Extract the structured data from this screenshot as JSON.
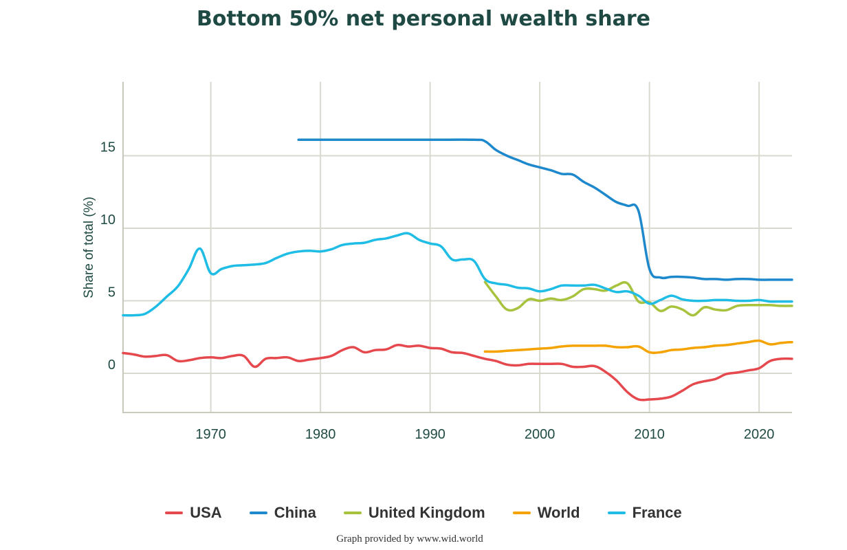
{
  "chart_data": {
    "type": "line",
    "title": "Bottom 50% net personal wealth share",
    "ylabel": "Share of total (%)",
    "xlabel": "",
    "xlim": [
      1962,
      2023
    ],
    "ylim": [
      -3,
      20
    ],
    "x_ticks": [
      "1970",
      "1980",
      "1990",
      "2000",
      "2010",
      "2020"
    ],
    "y_ticks": [
      "0",
      "5",
      "10",
      "15"
    ],
    "grid": true,
    "legend_position": "bottom",
    "credit": "Graph provided by www.wid.world",
    "series": [
      {
        "name": "USA",
        "color": "#e5484d",
        "points": [
          [
            1962,
            1.4
          ],
          [
            1963,
            1.3
          ],
          [
            1964,
            1.15
          ],
          [
            1965,
            1.2
          ],
          [
            1966,
            1.25
          ],
          [
            1967,
            0.85
          ],
          [
            1968,
            0.9
          ],
          [
            1969,
            1.05
          ],
          [
            1970,
            1.1
          ],
          [
            1971,
            1.05
          ],
          [
            1972,
            1.2
          ],
          [
            1973,
            1.2
          ],
          [
            1974,
            0.45
          ],
          [
            1975,
            1.0
          ],
          [
            1976,
            1.05
          ],
          [
            1977,
            1.1
          ],
          [
            1978,
            0.85
          ],
          [
            1979,
            0.95
          ],
          [
            1980,
            1.05
          ],
          [
            1981,
            1.2
          ],
          [
            1982,
            1.6
          ],
          [
            1983,
            1.8
          ],
          [
            1984,
            1.45
          ],
          [
            1985,
            1.6
          ],
          [
            1986,
            1.65
          ],
          [
            1987,
            1.95
          ],
          [
            1988,
            1.85
          ],
          [
            1989,
            1.9
          ],
          [
            1990,
            1.75
          ],
          [
            1991,
            1.7
          ],
          [
            1992,
            1.45
          ],
          [
            1993,
            1.4
          ],
          [
            1994,
            1.2
          ],
          [
            1995,
            1.0
          ],
          [
            1996,
            0.85
          ],
          [
            1997,
            0.6
          ],
          [
            1998,
            0.55
          ],
          [
            1999,
            0.65
          ],
          [
            2000,
            0.65
          ],
          [
            2001,
            0.65
          ],
          [
            2002,
            0.65
          ],
          [
            2003,
            0.45
          ],
          [
            2004,
            0.45
          ],
          [
            2005,
            0.5
          ],
          [
            2006,
            0.1
          ],
          [
            2007,
            -0.5
          ],
          [
            2008,
            -1.3
          ],
          [
            2009,
            -1.8
          ],
          [
            2010,
            -1.8
          ],
          [
            2011,
            -1.75
          ],
          [
            2012,
            -1.6
          ],
          [
            2013,
            -1.2
          ],
          [
            2014,
            -0.75
          ],
          [
            2015,
            -0.55
          ],
          [
            2016,
            -0.4
          ],
          [
            2017,
            -0.05
          ],
          [
            2018,
            0.05
          ],
          [
            2019,
            0.2
          ],
          [
            2020,
            0.35
          ],
          [
            2021,
            0.85
          ],
          [
            2022,
            1.0
          ],
          [
            2023,
            1.0
          ]
        ]
      },
      {
        "name": "China",
        "color": "#1e88cc",
        "points": [
          [
            1978,
            16.1
          ],
          [
            1980,
            16.1
          ],
          [
            1985,
            16.1
          ],
          [
            1990,
            16.1
          ],
          [
            1994,
            16.1
          ],
          [
            1995,
            16.0
          ],
          [
            1996,
            15.4
          ],
          [
            1997,
            15.0
          ],
          [
            1998,
            14.7
          ],
          [
            1999,
            14.4
          ],
          [
            2000,
            14.2
          ],
          [
            2001,
            14.0
          ],
          [
            2002,
            13.75
          ],
          [
            2003,
            13.7
          ],
          [
            2004,
            13.2
          ],
          [
            2005,
            12.8
          ],
          [
            2006,
            12.3
          ],
          [
            2007,
            11.8
          ],
          [
            2008,
            11.55
          ],
          [
            2009,
            11.2
          ],
          [
            2010,
            7.2
          ],
          [
            2011,
            6.6
          ],
          [
            2012,
            6.65
          ],
          [
            2013,
            6.65
          ],
          [
            2014,
            6.6
          ],
          [
            2015,
            6.5
          ],
          [
            2016,
            6.5
          ],
          [
            2017,
            6.45
          ],
          [
            2018,
            6.5
          ],
          [
            2019,
            6.5
          ],
          [
            2020,
            6.45
          ],
          [
            2021,
            6.45
          ],
          [
            2022,
            6.45
          ],
          [
            2023,
            6.45
          ]
        ]
      },
      {
        "name": "United Kingdom",
        "color": "#a7c23d",
        "points": [
          [
            1995,
            6.3
          ],
          [
            1996,
            5.3
          ],
          [
            1997,
            4.4
          ],
          [
            1998,
            4.5
          ],
          [
            1999,
            5.1
          ],
          [
            2000,
            5.0
          ],
          [
            2001,
            5.15
          ],
          [
            2002,
            5.05
          ],
          [
            2003,
            5.3
          ],
          [
            2004,
            5.8
          ],
          [
            2005,
            5.8
          ],
          [
            2006,
            5.7
          ],
          [
            2007,
            6.05
          ],
          [
            2008,
            6.2
          ],
          [
            2009,
            4.95
          ],
          [
            2010,
            4.9
          ],
          [
            2011,
            4.3
          ],
          [
            2012,
            4.6
          ],
          [
            2013,
            4.4
          ],
          [
            2014,
            4.0
          ],
          [
            2015,
            4.55
          ],
          [
            2016,
            4.4
          ],
          [
            2017,
            4.35
          ],
          [
            2018,
            4.65
          ],
          [
            2019,
            4.7
          ],
          [
            2020,
            4.7
          ],
          [
            2021,
            4.7
          ],
          [
            2022,
            4.65
          ],
          [
            2023,
            4.65
          ]
        ]
      },
      {
        "name": "World",
        "color": "#f4a300",
        "points": [
          [
            1995,
            1.5
          ],
          [
            1996,
            1.5
          ],
          [
            1997,
            1.55
          ],
          [
            1998,
            1.6
          ],
          [
            1999,
            1.65
          ],
          [
            2000,
            1.7
          ],
          [
            2001,
            1.75
          ],
          [
            2002,
            1.85
          ],
          [
            2003,
            1.9
          ],
          [
            2004,
            1.9
          ],
          [
            2005,
            1.9
          ],
          [
            2006,
            1.9
          ],
          [
            2007,
            1.8
          ],
          [
            2008,
            1.8
          ],
          [
            2009,
            1.85
          ],
          [
            2010,
            1.45
          ],
          [
            2011,
            1.45
          ],
          [
            2012,
            1.6
          ],
          [
            2013,
            1.65
          ],
          [
            2014,
            1.75
          ],
          [
            2015,
            1.8
          ],
          [
            2016,
            1.9
          ],
          [
            2017,
            1.95
          ],
          [
            2018,
            2.05
          ],
          [
            2019,
            2.15
          ],
          [
            2020,
            2.25
          ],
          [
            2021,
            2.0
          ],
          [
            2022,
            2.1
          ],
          [
            2023,
            2.15
          ]
        ]
      },
      {
        "name": "France",
        "color": "#1fbde6",
        "points": [
          [
            1962,
            4.0
          ],
          [
            1963,
            4.0
          ],
          [
            1964,
            4.1
          ],
          [
            1965,
            4.6
          ],
          [
            1966,
            5.3
          ],
          [
            1967,
            6.0
          ],
          [
            1968,
            7.2
          ],
          [
            1969,
            8.6
          ],
          [
            1970,
            6.9
          ],
          [
            1971,
            7.2
          ],
          [
            1972,
            7.4
          ],
          [
            1973,
            7.45
          ],
          [
            1974,
            7.5
          ],
          [
            1975,
            7.6
          ],
          [
            1976,
            7.95
          ],
          [
            1977,
            8.25
          ],
          [
            1978,
            8.4
          ],
          [
            1979,
            8.45
          ],
          [
            1980,
            8.4
          ],
          [
            1981,
            8.55
          ],
          [
            1982,
            8.85
          ],
          [
            1983,
            8.95
          ],
          [
            1984,
            9.0
          ],
          [
            1985,
            9.2
          ],
          [
            1986,
            9.3
          ],
          [
            1987,
            9.5
          ],
          [
            1988,
            9.65
          ],
          [
            1989,
            9.2
          ],
          [
            1990,
            8.95
          ],
          [
            1991,
            8.75
          ],
          [
            1992,
            7.85
          ],
          [
            1993,
            7.85
          ],
          [
            1994,
            7.75
          ],
          [
            1995,
            6.5
          ],
          [
            1996,
            6.2
          ],
          [
            1997,
            6.1
          ],
          [
            1998,
            5.9
          ],
          [
            1999,
            5.85
          ],
          [
            2000,
            5.65
          ],
          [
            2001,
            5.8
          ],
          [
            2002,
            6.05
          ],
          [
            2003,
            6.05
          ],
          [
            2004,
            6.05
          ],
          [
            2005,
            6.1
          ],
          [
            2006,
            5.85
          ],
          [
            2007,
            5.6
          ],
          [
            2008,
            5.65
          ],
          [
            2009,
            5.35
          ],
          [
            2010,
            4.8
          ],
          [
            2011,
            5.05
          ],
          [
            2012,
            5.35
          ],
          [
            2013,
            5.1
          ],
          [
            2014,
            5.0
          ],
          [
            2015,
            5.0
          ],
          [
            2016,
            5.05
          ],
          [
            2017,
            5.05
          ],
          [
            2018,
            5.0
          ],
          [
            2019,
            5.0
          ],
          [
            2020,
            5.05
          ],
          [
            2021,
            4.95
          ],
          [
            2022,
            4.95
          ],
          [
            2023,
            4.95
          ]
        ]
      }
    ]
  }
}
